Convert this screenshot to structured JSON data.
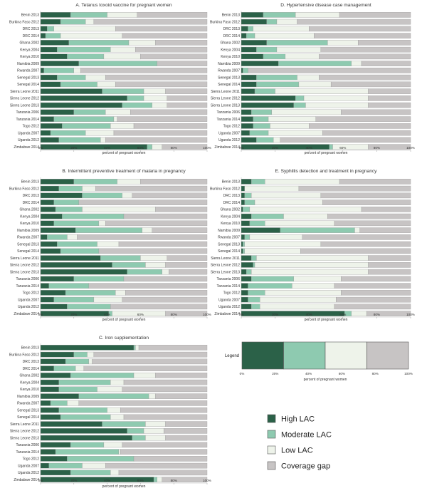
{
  "colors": {
    "high": "#2b6148",
    "moderate": "#8ecab0",
    "low": "#eef3ea",
    "gap": "#c7c4c4"
  },
  "key": {
    "items": [
      {
        "label": "High LAC",
        "color_key": "high"
      },
      {
        "label": "Moderate LAC",
        "color_key": "moderate"
      },
      {
        "label": "Low LAC",
        "color_key": "low"
      },
      {
        "label": "Coverage gap",
        "color_key": "gap"
      }
    ]
  },
  "chart_data": [
    {
      "type": "bar",
      "orientation": "horizontal",
      "stacked": true,
      "title": "A. Tetanus toxoid vaccine for pregnant women",
      "xlabel": "percent of pregnant women",
      "xticks": [
        "0%",
        "20%",
        "40%",
        "60%",
        "80%",
        "100%"
      ],
      "xlim": [
        0,
        100
      ],
      "categories": [
        "Benin 2013",
        "Burkina Faso 2012",
        "DRC 2013",
        "DRC 2014",
        "Ghana 2002",
        "Kenya 2004",
        "Kenya 2010",
        "Namibia 2009",
        "Rwanda 2007",
        "Senegal 2013",
        "Senegal 2014",
        "Sierra Leone 2011",
        "Sierra Leone 2012",
        "Sierra Leone 2013",
        "Tanzania 2006",
        "Tanzania 2014",
        "Togo 2012",
        "Uganda 2007",
        "Uganda 2012",
        "Zimbabwe 2014"
      ],
      "series": [
        {
          "name": "High LAC",
          "values": [
            18,
            12,
            4,
            3,
            17,
            10,
            16,
            23,
            2,
            10,
            12,
            37,
            52,
            49,
            20,
            8,
            13,
            6,
            11,
            64
          ]
        },
        {
          "name": "Moderate LAC",
          "values": [
            22,
            15,
            4,
            9,
            36,
            32,
            22,
            47,
            18,
            17,
            22,
            25,
            10,
            18,
            19,
            36,
            29,
            21,
            25,
            3
          ]
        },
        {
          "name": "Low LAC",
          "values": [
            18,
            5,
            37,
            37,
            16,
            15,
            22,
            0,
            4,
            12,
            11,
            13,
            14,
            9,
            15,
            2,
            14,
            17,
            3,
            6
          ]
        },
        {
          "name": "Coverage gap",
          "values": [
            42,
            68,
            55,
            51,
            31,
            43,
            40,
            30,
            76,
            61,
            55,
            25,
            24,
            24,
            46,
            54,
            44,
            56,
            61,
            27
          ]
        }
      ]
    },
    {
      "type": "bar",
      "orientation": "horizontal",
      "stacked": true,
      "title": "D. Hypertensive disease case management",
      "xlabel": "percent of pregnant women",
      "xticks": [
        "0%",
        "20%",
        "40%",
        "60%",
        "80%",
        "100%"
      ],
      "xlim": [
        0,
        100
      ],
      "categories": [
        "Benin 2013",
        "Burkina Faso 2012",
        "DRC 2013",
        "DRC 2014",
        "Ghana 2002",
        "Kenya 2004",
        "Kenya 2010",
        "Namibia 2009",
        "Rwanda 2007",
        "Senegal 2013",
        "Senegal 2014",
        "Sierra Leone 2011",
        "Sierra Leone 2012",
        "Sierra Leone 2013",
        "Tanzania 2006",
        "Tanzania 2014",
        "Togo 2012",
        "Uganda 2007",
        "Uganda 2012",
        "Zimbabwe 2014"
      ],
      "series": [
        {
          "name": "High LAC",
          "values": [
            13,
            15,
            4,
            3,
            15,
            9,
            13,
            22,
            1,
            9,
            9,
            8,
            32,
            31,
            6,
            7,
            7,
            5,
            9,
            52
          ]
        },
        {
          "name": "Moderate LAC",
          "values": [
            19,
            6,
            3,
            5,
            36,
            12,
            13,
            43,
            3,
            24,
            25,
            12,
            5,
            7,
            12,
            9,
            10,
            11,
            10,
            2
          ]
        },
        {
          "name": "Low LAC",
          "values": [
            26,
            12,
            33,
            35,
            18,
            26,
            20,
            6,
            0,
            13,
            19,
            55,
            38,
            37,
            41,
            28,
            23,
            32,
            4,
            21
          ]
        },
        {
          "name": "Coverage gap",
          "values": [
            42,
            67,
            60,
            57,
            31,
            53,
            54,
            29,
            96,
            54,
            47,
            25,
            25,
            25,
            41,
            56,
            60,
            52,
            77,
            25
          ]
        }
      ]
    },
    {
      "type": "bar",
      "orientation": "horizontal",
      "stacked": true,
      "title": "B. Intermittent preventive treatment of malaria in pregnancy",
      "xlabel": "percent of pregnant women",
      "xticks": [
        "0%",
        "20%",
        "40%",
        "60%",
        "80%",
        "100%"
      ],
      "xlim": [
        0,
        100
      ],
      "categories": [
        "Benin 2013",
        "Burkina Faso 2012",
        "DRC 2013",
        "DRC 2014",
        "Ghana 2002",
        "Kenya 2004",
        "Kenya 2010",
        "Namibia 2009",
        "Rwanda 2007",
        "Senegal 2013",
        "Senegal 2014",
        "Sierra Leone 2011",
        "Sierra Leone 2012",
        "Sierra Leone 2013",
        "Tanzania 2006",
        "Tanzania 2014",
        "Togo 2012",
        "Uganda 2007",
        "Uganda 2012",
        "Zimbabwe 2014"
      ],
      "series": [
        {
          "name": "High LAC",
          "values": [
            20,
            11,
            25,
            8,
            9,
            13,
            8,
            21,
            4,
            10,
            12,
            36,
            43,
            52,
            20,
            5,
            15,
            8,
            16,
            41
          ]
        },
        {
          "name": "Moderate LAC",
          "values": [
            26,
            14,
            24,
            15,
            16,
            37,
            27,
            40,
            12,
            24,
            23,
            24,
            20,
            21,
            30,
            24,
            30,
            24,
            26,
            2
          ]
        },
        {
          "name": "Low LAC",
          "values": [
            14,
            8,
            6,
            0,
            44,
            0,
            4,
            6,
            6,
            13,
            0,
            16,
            12,
            4,
            0,
            0,
            6,
            17,
            0,
            32
          ]
        },
        {
          "name": "Coverage gap",
          "values": [
            40,
            67,
            45,
            77,
            31,
            50,
            61,
            33,
            78,
            53,
            65,
            24,
            25,
            23,
            50,
            71,
            49,
            51,
            58,
            25
          ]
        }
      ]
    },
    {
      "type": "bar",
      "orientation": "horizontal",
      "stacked": true,
      "title": "E. Syphillis detection and treatment in pregnancy",
      "xlabel": "percent of pregnant women",
      "xticks": [
        "0%",
        "20%",
        "40%",
        "60%",
        "80%",
        "100%"
      ],
      "xlim": [
        0,
        100
      ],
      "categories": [
        "Benin 2013",
        "Burkina Faso 2012",
        "DRC 2013",
        "DRC 2014",
        "Ghana 2002",
        "Kenya 2004",
        "Kenya 2010",
        "Namibia 2009",
        "Rwanda 2007",
        "Senegal 2013",
        "Senegal 2014",
        "Sierra Leone 2011",
        "Sierra Leone 2012",
        "Sierra Leone 2013",
        "Tanzania 2006",
        "Tanzania 2014",
        "Togo 2012",
        "Uganda 2007",
        "Uganda 2012",
        "Zimbabwe 2014"
      ],
      "series": [
        {
          "name": "High LAC",
          "values": [
            6,
            2,
            2,
            2,
            1,
            6,
            5,
            23,
            2,
            1,
            1,
            6,
            7,
            3,
            6,
            4,
            4,
            4,
            6,
            61
          ]
        },
        {
          "name": "Moderate LAC",
          "values": [
            8,
            0,
            4,
            6,
            4,
            19,
            9,
            44,
            3,
            1,
            1,
            3,
            1,
            3,
            25,
            26,
            10,
            7,
            5,
            4
          ]
        },
        {
          "name": "Low LAC",
          "values": [
            44,
            32,
            41,
            40,
            66,
            26,
            41,
            3,
            31,
            45,
            33,
            66,
            67,
            69,
            28,
            25,
            45,
            45,
            44,
            9
          ]
        },
        {
          "name": "Coverage gap",
          "values": [
            42,
            66,
            53,
            52,
            29,
            49,
            45,
            30,
            64,
            53,
            65,
            25,
            25,
            25,
            41,
            45,
            41,
            44,
            45,
            26
          ]
        }
      ]
    },
    {
      "type": "bar",
      "orientation": "horizontal",
      "stacked": true,
      "title": "C. Iron supplementation",
      "xlabel": "percent of pregnant women",
      "xticks": [
        "0%",
        "20%",
        "40%",
        "60%",
        "80%",
        "100%"
      ],
      "xlim": [
        0,
        100
      ],
      "categories": [
        "Benin 2013",
        "Burkina Faso 2012",
        "DRC 2013",
        "DRC 2014",
        "Ghana 2002",
        "Kenya 2004",
        "Kenya 2010",
        "Namibia 2009",
        "Rwanda 2007",
        "Senegal 2013",
        "Senegal 2014",
        "Sierra Leone 2011",
        "Sierra Leone 2012",
        "Sierra Leone 2013",
        "Tanzania 2006",
        "Tanzania 2014",
        "Togo 2012",
        "Uganda 2007",
        "Uganda 2012",
        "Zimbabwe 2014"
      ],
      "series": [
        {
          "name": "High LAC",
          "values": [
            56,
            20,
            15,
            8,
            18,
            11,
            11,
            23,
            6,
            11,
            12,
            37,
            52,
            55,
            18,
            9,
            16,
            5,
            18,
            68
          ]
        },
        {
          "name": "Moderate LAC",
          "values": [
            1,
            8,
            14,
            13,
            38,
            31,
            23,
            42,
            10,
            29,
            30,
            26,
            10,
            8,
            20,
            38,
            40,
            20,
            24,
            2
          ]
        },
        {
          "name": "Low LAC",
          "values": [
            2,
            4,
            2,
            5,
            13,
            8,
            15,
            4,
            7,
            8,
            8,
            12,
            12,
            12,
            11,
            1,
            0,
            14,
            5,
            3
          ]
        },
        {
          "name": "Coverage gap",
          "values": [
            41,
            68,
            69,
            74,
            31,
            50,
            51,
            31,
            77,
            52,
            50,
            25,
            26,
            25,
            51,
            52,
            44,
            61,
            53,
            27
          ]
        }
      ]
    },
    {
      "type": "bar",
      "orientation": "horizontal",
      "stacked": true,
      "title": "Legend",
      "xlabel": "percent of pregnant women",
      "xticks": [
        "0%",
        "20%",
        "40%",
        "60%",
        "80%",
        "100%"
      ],
      "xlim": [
        0,
        100
      ],
      "categories": [
        "Legend"
      ],
      "series": [
        {
          "name": "High LAC",
          "values": [
            25
          ]
        },
        {
          "name": "Moderate LAC",
          "values": [
            25
          ]
        },
        {
          "name": "Low LAC",
          "values": [
            25
          ]
        },
        {
          "name": "Coverage gap",
          "values": [
            25
          ]
        }
      ]
    }
  ]
}
